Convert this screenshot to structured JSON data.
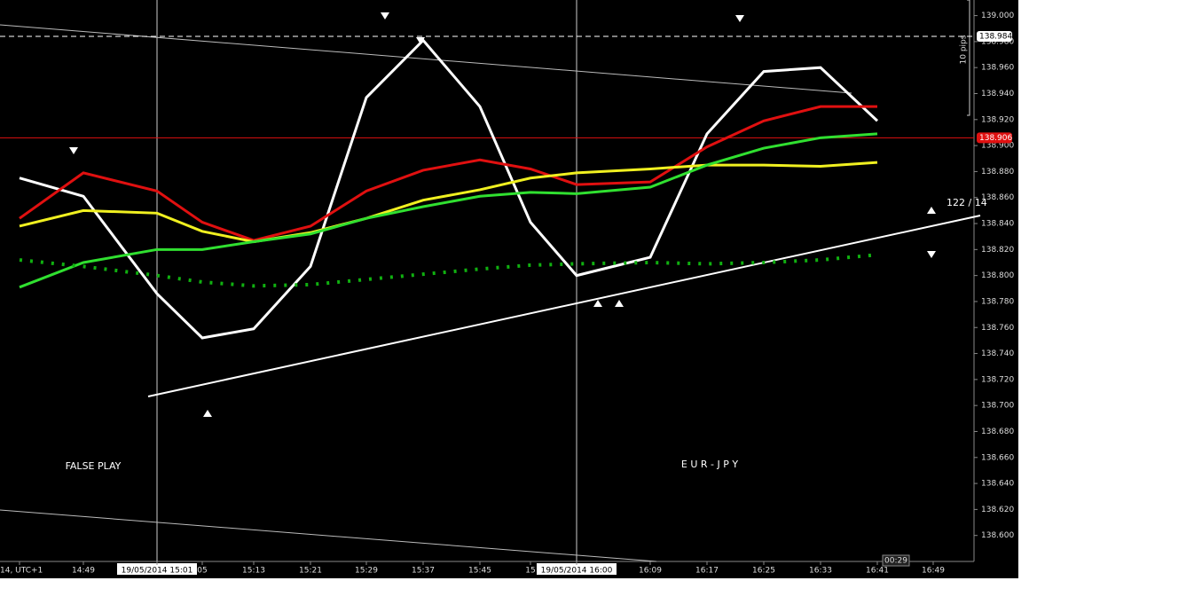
{
  "chart_data": {
    "type": "line",
    "categories": [
      "14, UTC+1",
      "14:49",
      "19/05/2014 15:01",
      "05",
      "15:13",
      "15:21",
      "15:29",
      "15:37",
      "15:45",
      "15",
      "19/05/2014 16:00",
      "16:09",
      "16:17",
      "16:25",
      "16:33",
      "16:41",
      "16:49"
    ],
    "series": [
      {
        "color": "#ffffff",
        "values": [
          138.875,
          138.861,
          138.786,
          138.752,
          138.759,
          138.807,
          138.937,
          138.981,
          138.93,
          138.841,
          138.8,
          138.814,
          138.909,
          138.957,
          138.96,
          138.919,
          null
        ]
      },
      {
        "color": "#e01010",
        "values": [
          138.844,
          138.879,
          138.865,
          138.841,
          138.827,
          138.838,
          138.865,
          138.881,
          138.889,
          138.882,
          138.87,
          138.872,
          138.899,
          138.919,
          138.93,
          138.93,
          null
        ]
      },
      {
        "color": "#f0f020",
        "values": [
          138.838,
          138.85,
          138.848,
          138.834,
          138.826,
          138.833,
          138.844,
          138.858,
          138.866,
          138.875,
          138.879,
          138.882,
          138.885,
          138.885,
          138.884,
          138.887,
          null
        ]
      },
      {
        "color": "#30e030",
        "values": [
          138.791,
          138.81,
          138.82,
          138.82,
          138.826,
          138.832,
          138.844,
          138.853,
          138.861,
          138.864,
          138.863,
          138.868,
          138.885,
          138.898,
          138.906,
          138.909,
          null
        ]
      },
      {
        "color": "#10b010",
        "style": "dotted",
        "values": [
          138.812,
          138.807,
          138.8,
          138.795,
          138.792,
          138.793,
          138.797,
          138.801,
          138.805,
          138.808,
          138.809,
          138.81,
          138.809,
          138.81,
          138.812,
          138.816,
          null
        ]
      }
    ],
    "ylim": [
      138.58,
      139.012
    ],
    "yticks": [
      {
        "value": 138.6,
        "label": "138.600"
      },
      {
        "value": 138.62,
        "label": "138.620"
      },
      {
        "value": 138.64,
        "label": "138.640"
      },
      {
        "value": 138.66,
        "label": "138.660"
      },
      {
        "value": 138.68,
        "label": "138.680"
      },
      {
        "value": 138.7,
        "label": "138.700"
      },
      {
        "value": 138.72,
        "label": "138.720"
      },
      {
        "value": 138.74,
        "label": "138.740"
      },
      {
        "value": 138.76,
        "label": "138.760"
      },
      {
        "value": 138.78,
        "label": "138.780"
      },
      {
        "value": 138.8,
        "label": "138.800"
      },
      {
        "value": 138.82,
        "label": "138.820"
      },
      {
        "value": 138.84,
        "label": "138.840"
      },
      {
        "value": 138.86,
        "label": "138.860"
      },
      {
        "value": 138.88,
        "label": "138.880"
      },
      {
        "value": 138.9,
        "label": "138.900"
      },
      {
        "value": 138.92,
        "label": "138.920"
      },
      {
        "value": 138.94,
        "label": "138.940"
      },
      {
        "value": 138.96,
        "label": "138.960"
      },
      {
        "value": 138.98,
        "label": "138.980"
      },
      {
        "value": 139.0,
        "label": "139.000"
      }
    ],
    "price_lines": [
      {
        "value": 138.984,
        "label": "138.984",
        "color": "#ffffff"
      },
      {
        "value": 138.906,
        "label": "138.906",
        "color": "#e01010"
      }
    ],
    "annotations": [
      "FALSE   PLAY",
      "E     U     R     -     J     P     Y",
      "122 / 14",
      "10 pips",
      "00:29"
    ]
  }
}
